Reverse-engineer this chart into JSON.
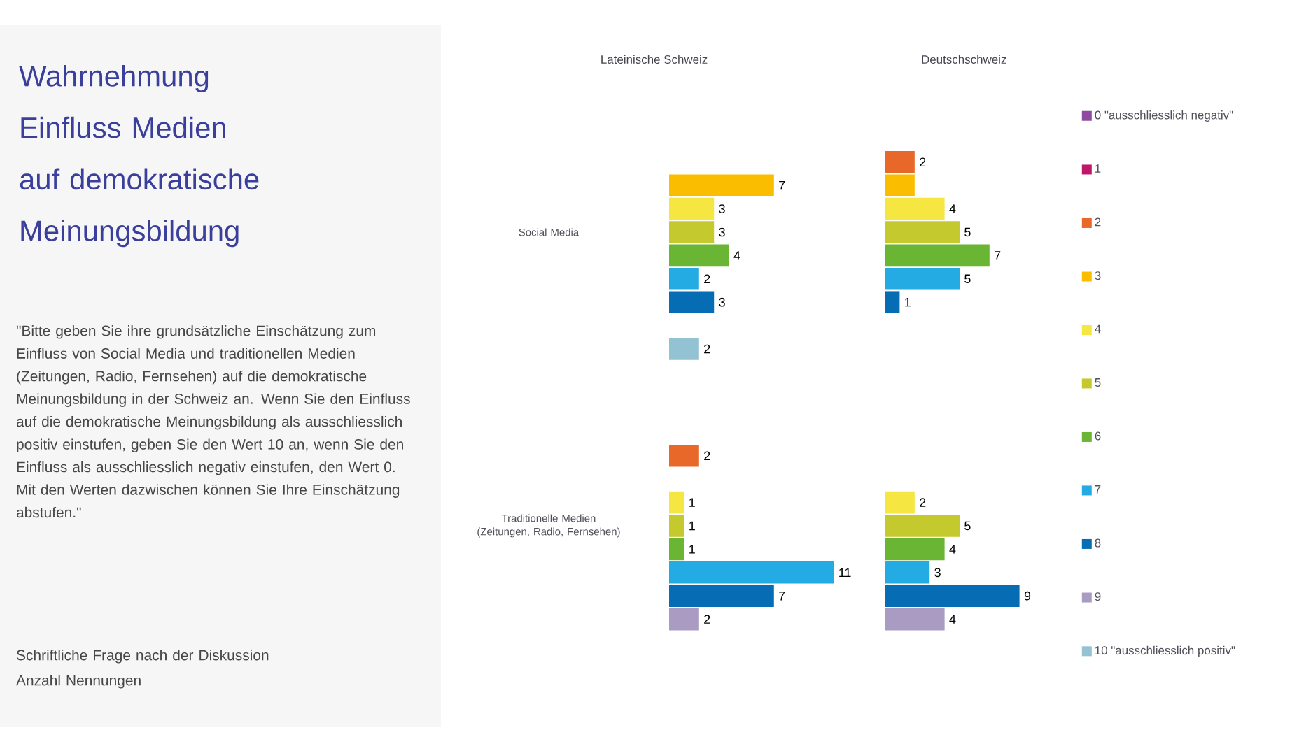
{
  "chart_data": [
    {
      "type": "other",
      "title": "Wahrnehmung Einfluss Medien auf demokratische Meinungsbildung",
      "annotations": [
        "\"Bitte geben Sie ihre grundsätzliche Einschätzung zum Einfluss von Social Media und traditionellen Medien (Zeitungen, Radio, Fernsehen) auf die demokratische Meinungsbildung in der Schweiz an. Wenn Sie den Einfluss auf die demokratische Meinungsbildung als ausschliesslich positiv einstufen, geben Sie den Wert 10 an, wenn Sie den Einfluss als ausschliesslich negativ einstufen, den Wert 0. Mit den Werten dazwischen können Sie Ihre Einschätzung abstufen.\"",
        "Schriftliche Frage nach der Diskussion",
        "Anzahl Nennungen"
      ]
    },
    {
      "type": "bar",
      "orientation": "horizontal",
      "title": "Lateinische Schweiz",
      "tick_labels": "y",
      "categories": [
        "Social Media",
        "Traditionelle Medien (Zeitungen, Radio, Fernsehen)"
      ],
      "series": [
        {
          "color": "#8e4a9e",
          "values": [
            null,
            null
          ],
          "value_labels": [
            null,
            null
          ]
        },
        {
          "color": "#c0166a",
          "values": [
            null,
            null
          ],
          "value_labels": [
            null,
            null
          ]
        },
        {
          "color": "#e8682a",
          "values": [
            null,
            2
          ],
          "value_labels": [
            null,
            "2"
          ]
        },
        {
          "color": "#fbbd00",
          "values": [
            7,
            null
          ],
          "value_labels": [
            "7",
            null
          ]
        },
        {
          "color": "#f5e642",
          "values": [
            3,
            1
          ],
          "value_labels": [
            "3",
            "1"
          ]
        },
        {
          "color": "#c4c92e",
          "values": [
            3,
            1
          ],
          "value_labels": [
            "3",
            "1"
          ]
        },
        {
          "color": "#6bb535",
          "values": [
            4,
            1
          ],
          "value_labels": [
            "4",
            "1"
          ]
        },
        {
          "color": "#24abe3",
          "values": [
            2,
            11
          ],
          "value_labels": [
            "2",
            "11"
          ]
        },
        {
          "color": "#066db5",
          "values": [
            3,
            7
          ],
          "value_labels": [
            "3",
            "7"
          ]
        },
        {
          "color": "#a99bc1",
          "values": [
            null,
            2
          ],
          "value_labels": [
            null,
            "2"
          ]
        },
        {
          "color": "#93c2d3",
          "values": [
            2,
            null
          ],
          "value_labels": [
            "2",
            null
          ]
        }
      ]
    },
    {
      "type": "bar",
      "orientation": "horizontal",
      "title": "Deutschschweiz",
      "legend": "right",
      "series": [
        {
          "name": "0 \"ausschliesslich negativ\"",
          "color": "#8e4a9e",
          "values": [
            null,
            null
          ],
          "value_labels": [
            null,
            null
          ]
        },
        {
          "name": "1",
          "color": "#c0166a",
          "values": [
            null,
            null
          ],
          "value_labels": [
            null,
            null
          ]
        },
        {
          "name": "2",
          "color": "#e8682a",
          "values": [
            2,
            null
          ],
          "value_labels": [
            "2",
            null
          ]
        },
        {
          "name": "3",
          "color": "#fbbd00",
          "values": [
            2,
            null
          ],
          "value_labels": [
            null,
            null
          ]
        },
        {
          "name": "4",
          "color": "#f5e642",
          "values": [
            4,
            2
          ],
          "value_labels": [
            "4",
            "2"
          ]
        },
        {
          "name": "5",
          "color": "#c4c92e",
          "values": [
            5,
            5
          ],
          "value_labels": [
            "5",
            "5"
          ]
        },
        {
          "name": "6",
          "color": "#6bb535",
          "values": [
            7,
            4
          ],
          "value_labels": [
            "7",
            "4"
          ]
        },
        {
          "name": "7",
          "color": "#24abe3",
          "values": [
            5,
            3
          ],
          "value_labels": [
            "5",
            "3"
          ]
        },
        {
          "name": "8",
          "color": "#066db5",
          "values": [
            1,
            9
          ],
          "value_labels": [
            "1",
            "9"
          ]
        },
        {
          "name": "9",
          "color": "#a99bc1",
          "values": [
            null,
            4
          ],
          "value_labels": [
            null,
            "4"
          ]
        },
        {
          "name": "10 \"ausschliesslich positiv\"",
          "color": "#93c2d3",
          "values": [
            null,
            null
          ],
          "value_labels": [
            null,
            null
          ]
        }
      ]
    }
  ]
}
